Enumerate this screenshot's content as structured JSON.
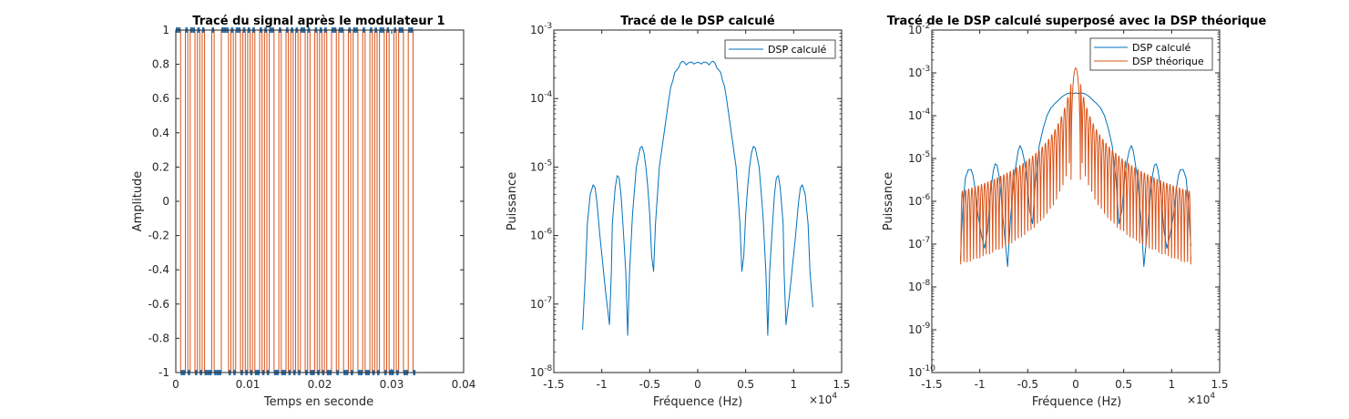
{
  "chart_data": [
    {
      "type": "line",
      "title": "Tracé du signal après le modulateur 1",
      "xlabel": "Temps en seconde",
      "ylabel": "Amplitude",
      "xlim": [
        0,
        0.04
      ],
      "ylim": [
        -1,
        1
      ],
      "xticks": [
        "0",
        "0.01",
        "0.02",
        "0.03",
        "0.04"
      ],
      "yticks": [
        "-1",
        "-0.8",
        "-0.6",
        "-0.4",
        "-0.2",
        "0",
        "0.2",
        "0.4",
        "0.6",
        "0.8",
        "1"
      ],
      "grid": false,
      "series": [
        {
          "kind": "square-wave",
          "color": "#d95319",
          "marker_color": "#2f6fa7",
          "sample_period": 0.000333,
          "levels": [
            1,
            1,
            -1,
            -1,
            1,
            -1,
            1,
            1,
            -1,
            1,
            -1,
            1,
            -1,
            -1,
            -1,
            1,
            -1,
            -1,
            -1,
            1,
            1,
            1,
            -1,
            1,
            -1,
            1,
            1,
            -1,
            1,
            -1,
            1,
            -1,
            1,
            -1,
            -1,
            1,
            -1,
            1,
            -1,
            1,
            1,
            -1,
            -1,
            1,
            -1,
            -1,
            1,
            -1,
            1,
            -1,
            1,
            -1,
            1,
            1,
            -1,
            1,
            -1,
            -1,
            1,
            -1,
            1,
            -1,
            1,
            -1,
            -1,
            1,
            1,
            -1,
            1,
            1,
            -1,
            -1,
            1,
            -1,
            1,
            1,
            -1,
            -1,
            1,
            -1,
            -1,
            1,
            -1,
            1,
            -1,
            1,
            1,
            -1,
            1,
            -1,
            -1,
            1,
            -1,
            1,
            1,
            -1,
            -1,
            1,
            1,
            -1
          ]
        }
      ]
    },
    {
      "type": "line",
      "title": "Tracé de le DSP calculé",
      "xlabel": "Fréquence (Hz)",
      "ylabel": "Puissance",
      "xlim": [
        -15000,
        15000
      ],
      "ylim": [
        1e-08,
        0.001
      ],
      "yscale": "log",
      "xticks": [
        "-1.5",
        "-1",
        "-0.5",
        "0",
        "0.5",
        "1",
        "1.5"
      ],
      "x_multiplier": "×10^4",
      "yticks": [
        -8,
        -7,
        -6,
        -5,
        -4,
        -3
      ],
      "grid": false,
      "legend_position": "top-right",
      "series": [
        {
          "name": "DSP calculé",
          "color": "#0072bd",
          "x": [
            -12000,
            -11700,
            -11500,
            -11200,
            -10900,
            -10700,
            -10500,
            -10200,
            -9600,
            -9200,
            -9000,
            -8900,
            -8600,
            -8400,
            -8200,
            -8000,
            -7800,
            -7500,
            -7300,
            -7100,
            -6800,
            -6400,
            -6000,
            -5800,
            -5600,
            -5400,
            -5200,
            -5000,
            -4800,
            -4600,
            -4400,
            -4000,
            -3400,
            -3000,
            -2800,
            -2600,
            -2400,
            -2200,
            -2000,
            -1800,
            -1600,
            -1400,
            -1200,
            -1000,
            -800,
            -600,
            -400,
            -200,
            0,
            200,
            400,
            600,
            800,
            1000,
            1200,
            1400,
            1600,
            1800,
            2000,
            2200,
            2400,
            2600,
            2800,
            3000,
            3400,
            4000,
            4400,
            4600,
            4800,
            5000,
            5200,
            5400,
            5600,
            5800,
            6000,
            6400,
            6800,
            7100,
            7300,
            7500,
            7800,
            8000,
            8200,
            8400,
            8600,
            8900,
            9000,
            9200,
            9600,
            10200,
            10500,
            10700,
            10900,
            11200,
            11500,
            11700,
            12000
          ],
          "y": [
            4.2e-08,
            3e-07,
            1.5e-06,
            4e-06,
            5.5e-06,
            5e-06,
            3e-06,
            1e-06,
            1.5e-07,
            5e-08,
            3e-07,
            1.5e-06,
            5e-06,
            7.5e-06,
            7e-06,
            4e-06,
            1.5e-06,
            3e-07,
            3.5e-08,
            3e-07,
            2e-06,
            1e-05,
            1.9e-05,
            2e-05,
            1.6e-05,
            1e-05,
            5e-06,
            2e-06,
            5e-07,
            3e-07,
            1.5e-06,
            1e-05,
            4e-05,
            0.0001,
            0.00015,
            0.00018,
            0.00024,
            0.00026,
            0.00028,
            0.00033,
            0.00035,
            0.00034,
            0.00031,
            0.00033,
            0.00034,
            0.00034,
            0.00032,
            0.00033,
            0.00034,
            0.00033,
            0.00032,
            0.00034,
            0.00034,
            0.00033,
            0.00031,
            0.00034,
            0.00035,
            0.00033,
            0.00028,
            0.00026,
            0.00024,
            0.00018,
            0.00015,
            0.0001,
            4e-05,
            1e-05,
            1.5e-06,
            3e-07,
            5e-07,
            2e-06,
            5e-06,
            1e-05,
            1.6e-05,
            2e-05,
            1.9e-05,
            1e-05,
            2e-06,
            3e-07,
            3.5e-08,
            3e-07,
            1.5e-06,
            4e-06,
            7e-06,
            7.5e-06,
            5e-06,
            1.5e-06,
            3e-07,
            5e-08,
            1.5e-07,
            1e-06,
            3e-06,
            5e-06,
            5.5e-06,
            4e-06,
            1.5e-06,
            3e-07,
            9e-08
          ]
        }
      ]
    },
    {
      "type": "line",
      "title": "Tracé de le DSP calculé superposé avec la DSP théorique",
      "xlabel": "Fréquence (Hz)",
      "ylabel": "Puissance",
      "xlim": [
        -15000,
        15000
      ],
      "ylim": [
        1e-10,
        0.01
      ],
      "yscale": "log",
      "xticks": [
        "-1.5",
        "-1",
        "-0.5",
        "0",
        "0.5",
        "1",
        "1.5"
      ],
      "x_multiplier": "×10^4",
      "yticks": [
        -10,
        -9,
        -8,
        -7,
        -6,
        -5,
        -4,
        -3,
        -2
      ],
      "grid": false,
      "legend_position": "top-right",
      "series": [
        {
          "name": "DSP calculé",
          "color": "#0072bd",
          "x": [
            -12000,
            -11900,
            -11700,
            -11500,
            -11200,
            -10900,
            -10700,
            -10500,
            -10200,
            -9800,
            -9500,
            -9200,
            -8900,
            -8600,
            -8400,
            -8200,
            -8000,
            -7800,
            -7500,
            -7100,
            -6800,
            -6400,
            -6000,
            -5800,
            -5600,
            -5400,
            -5200,
            -5000,
            -4800,
            -4500,
            -4200,
            -3800,
            -3400,
            -3000,
            -2600,
            -2200,
            -1800,
            -1400,
            -1000,
            -600,
            -200,
            0,
            200,
            600,
            1000,
            1400,
            1800,
            2200,
            2600,
            3000,
            3400,
            3800,
            4200,
            4500,
            4800,
            5000,
            5200,
            5400,
            5600,
            5800,
            6000,
            6400,
            6800,
            7100,
            7500,
            7800,
            8000,
            8200,
            8400,
            8600,
            8900,
            9200,
            9500,
            9800,
            10200,
            10500,
            10700,
            10900,
            11200,
            11500,
            11700,
            11900,
            12000
          ],
          "y": [
            4e-08,
            2e-07,
            1.2e-06,
            3.5e-06,
            5.5e-06,
            5.5e-06,
            4e-06,
            2e-06,
            5e-07,
            1.5e-07,
            8e-08,
            2e-07,
            1.5e-06,
            5e-06,
            7.5e-06,
            7e-06,
            4e-06,
            1.5e-06,
            2.5e-07,
            3e-08,
            4e-07,
            4e-06,
            1.5e-05,
            2e-05,
            1.6e-05,
            1e-05,
            5e-06,
            2e-06,
            6e-07,
            3e-07,
            3e-06,
            2e-05,
            5e-05,
            0.0001,
            0.00015,
            0.00019,
            0.00023,
            0.00028,
            0.00032,
            0.00034,
            0.00033,
            0.00034,
            0.00033,
            0.00034,
            0.00032,
            0.00028,
            0.00023,
            0.00019,
            0.00015,
            0.0001,
            5e-05,
            2e-05,
            3e-06,
            3e-07,
            6e-07,
            2e-06,
            5e-06,
            1e-05,
            1.6e-05,
            2e-05,
            1.5e-05,
            4e-06,
            4e-07,
            3e-08,
            2.5e-07,
            1.5e-06,
            4e-06,
            7e-06,
            7.5e-06,
            5e-06,
            1.5e-06,
            2e-07,
            8e-08,
            1.5e-07,
            5e-07,
            2e-06,
            4e-06,
            5.5e-06,
            5.5e-06,
            3.5e-06,
            1.2e-06,
            2e-07,
            9e-08
          ]
        },
        {
          "name": "DSP théorique",
          "color": "#d95319",
          "kind": "sinc-squared",
          "x_range": [
            -12000,
            12000
          ],
          "peak": 0.0013,
          "null_spacing": 333,
          "floor": 2e-08,
          "min_dip": 1.5e-10
        }
      ]
    }
  ]
}
